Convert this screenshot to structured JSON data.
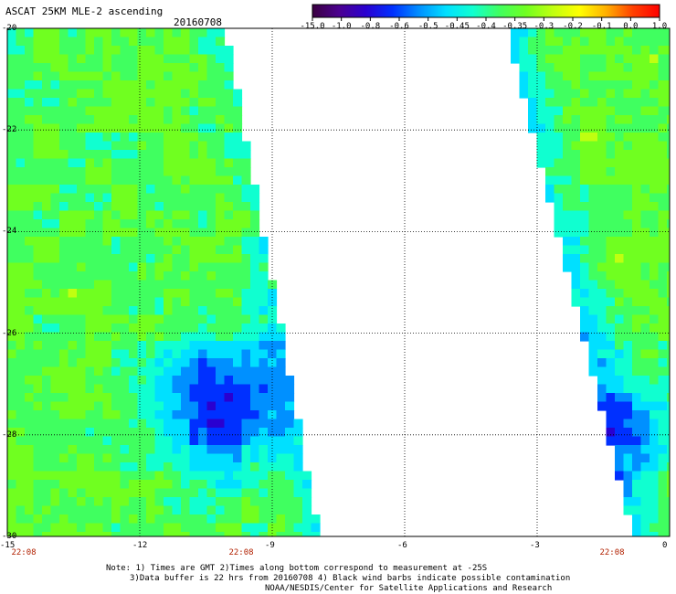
{
  "title": "ASCAT 25KM MLE-2 ascending",
  "date": "20160708",
  "colorbar": {
    "labels": [
      "-15.0",
      "-1.0",
      "-0.8",
      "-0.6",
      "-0.5",
      "-0.45",
      "-0.4",
      "-0.35",
      "-0.3",
      "-0.2",
      "-0.1",
      "0.0",
      "1.0"
    ],
    "colors": [
      "#3a0040",
      "#4b0090",
      "#2a00d0",
      "#0030ff",
      "#0090ff",
      "#00e0ff",
      "#10ffd0",
      "#40ff60",
      "#70ff20",
      "#c0ff10",
      "#ffff00",
      "#ffb000",
      "#ff4000",
      "#ff0000"
    ]
  },
  "axes": {
    "x_ticks": [
      "-15",
      "-12",
      "-9",
      "-6",
      "-3",
      "0"
    ],
    "y_ticks": [
      "-20",
      "-22",
      "-24",
      "-26",
      "-28",
      "-30"
    ],
    "x_range": [
      -15,
      0
    ],
    "y_range": [
      -30,
      -20
    ]
  },
  "swath_times": [
    "22:08",
    "22:08",
    "22:08"
  ],
  "notes": [
    "Note: 1) Times are GMT 2)Times along bottom correspond to measurement at -25S",
    "3)Data buffer is 22 hrs from 20160708 4) Black wind barbs indicate possible contamination",
    "NOAA/NESDIS/Center for Satellite Applications and Research"
  ]
}
